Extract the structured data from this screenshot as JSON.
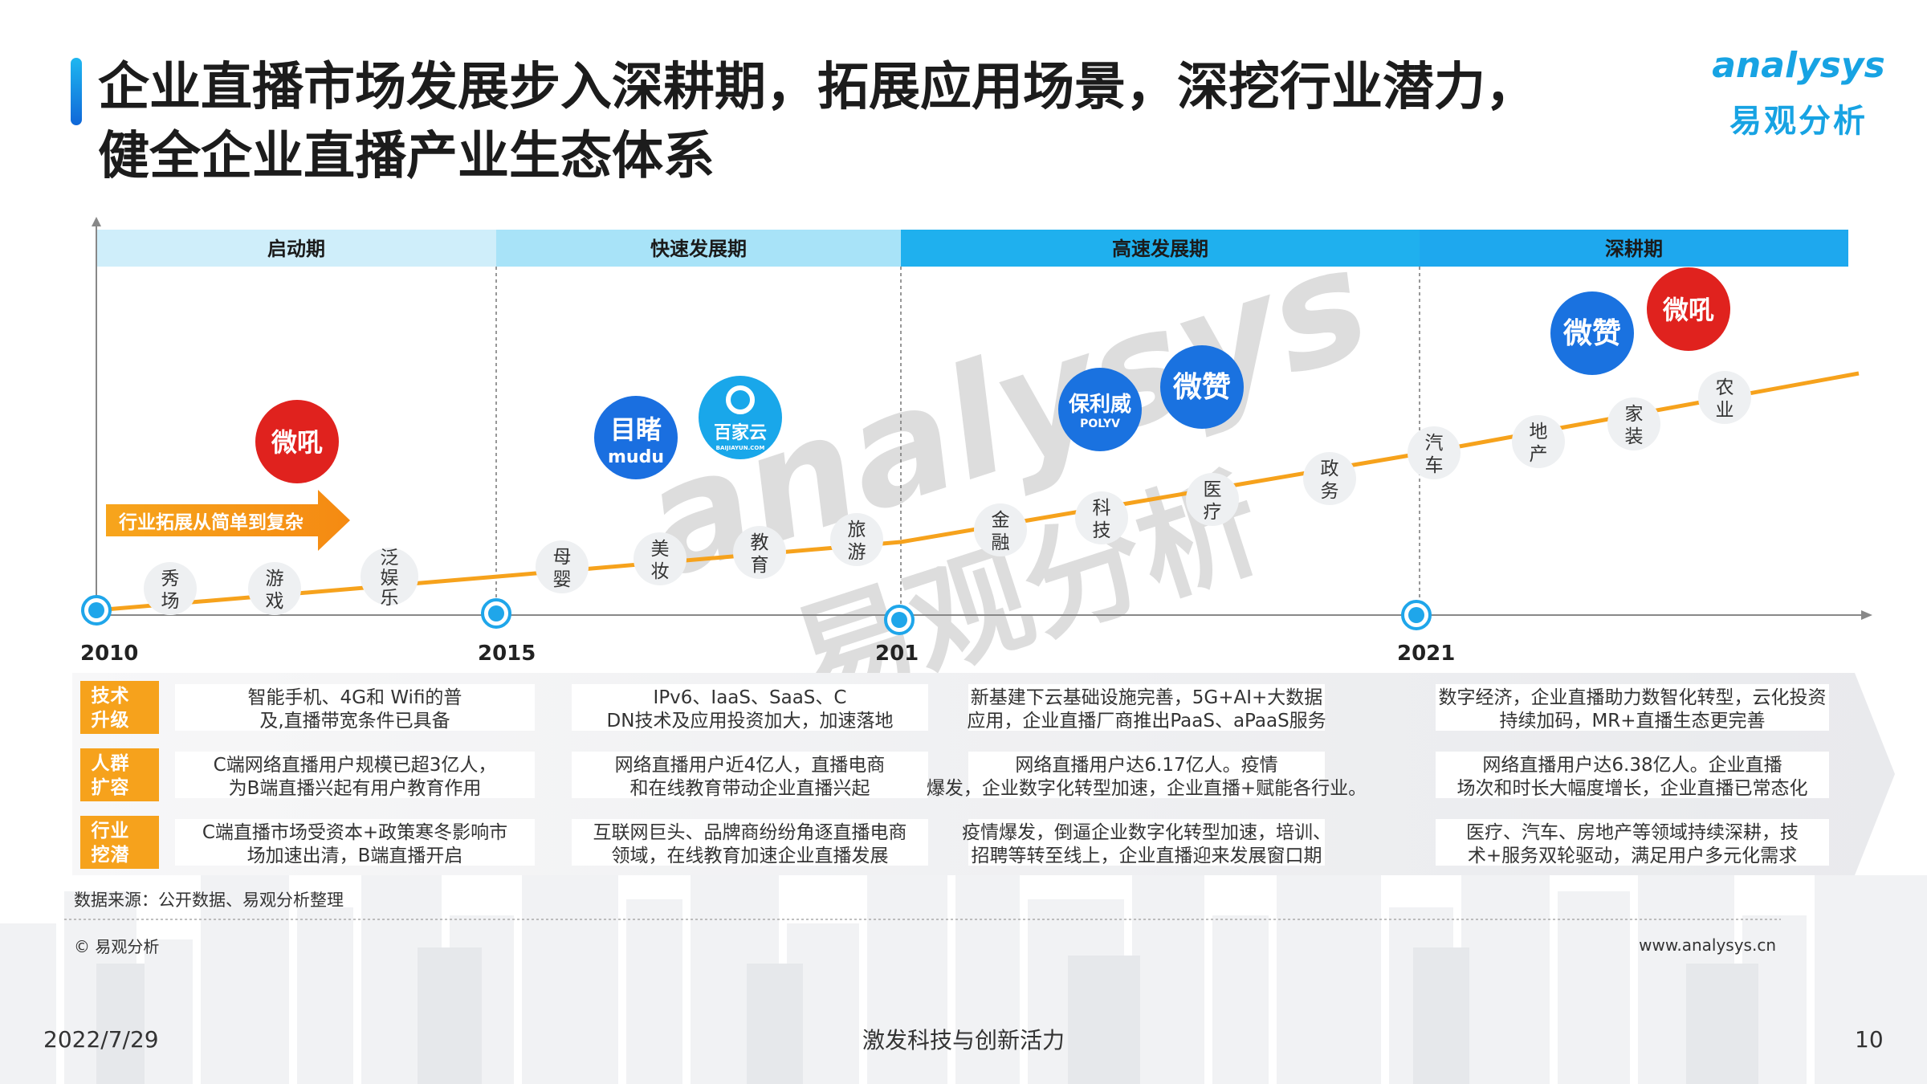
{
  "title": {
    "line1": "企业直播市场发展步入深耕期，拓展应用场景，深挖行业潜力，",
    "line2": "健全企业直播产业生态体系"
  },
  "logo": {
    "en": "analysys",
    "cn": "易观分析"
  },
  "phases": [
    {
      "label": "启动期",
      "color": "#cfeefa"
    },
    {
      "label": "快速发展期",
      "color": "#a8e3f8"
    },
    {
      "label": "高速发展期",
      "color": "#1fb0ee"
    },
    {
      "label": "深耕期",
      "color": "#1ea8ee"
    }
  ],
  "years": [
    "2010",
    "2015",
    "201",
    "2021"
  ],
  "arrow_label": "行业拓展从简单到复杂",
  "industries": [
    "秀场",
    "游戏",
    "泛娱乐",
    "母婴",
    "美妆",
    "教育",
    "旅游",
    "金融",
    "科技",
    "医疗",
    "政务",
    "汽车",
    "地产",
    "家装",
    "农业"
  ],
  "brands": [
    {
      "name": "微吼",
      "color": "#e0221e"
    },
    {
      "name": "目睹",
      "sub": "mudu",
      "color": "#1a6fe0"
    },
    {
      "name": "百家云",
      "sub": "BAIJIAYUN.COM",
      "color": "#19a7ea"
    },
    {
      "name": "保利威",
      "sub": "POLYV",
      "color": "#1a72e0"
    },
    {
      "name": "微赞",
      "color": "#1a72e0"
    },
    {
      "name": "微赞",
      "color": "#1a72e0"
    },
    {
      "name": "微吼",
      "color": "#e0221e"
    }
  ],
  "row_labels": [
    "技术升级",
    "人群扩容",
    "行业挖潜"
  ],
  "cells": [
    [
      "智能手机、4G和 Wifi的普及,直播带宽条件已具备",
      "IPv6、IaaS、SaaS、CDN技术及应用投资加大，加速落地",
      "新基建下云基础设施完善，5G+AI+大数据应用，企业直播厂商推出PaaS、aPaaS服务",
      "数字经济，企业直播助力数智化转型，云化投资持续加码，MR+直播生态更完善"
    ],
    [
      "C端网络直播用户规模已超3亿人，为B端直播兴起有用户教育作用",
      "网络直播用户近4亿人，直播电商和在线教育带动企业直播兴起",
      "网络直播用户达6.17亿人。疫情爆发，企业数字化转型加速，企业直播+赋能各行业。",
      "网络直播用户达6.38亿人。企业直播场次和时长大幅度增长，企业直播已常态化"
    ],
    [
      "C端直播市场受资本+政策寒冬影响市场加速出清，B端直播开启",
      "互联网巨头、品牌商纷纷角逐直播电商领域，在线教育加速企业直播发展",
      "疫情爆发，倒逼企业数字化转型加速，培训、招聘等转至线上，企业直播迎来发展窗口期",
      "医疗、汽车、房地产等领域持续深耕，技术+服务双轮驱动，满足用户多元化需求"
    ]
  ],
  "source": "数据来源：公开数据、易观分析整理",
  "copyright": "© 易观分析",
  "website": "www.analysys.cn",
  "date": "2022/7/29",
  "slogan": "激发科技与创新活力",
  "page_number": "10",
  "watermark": {
    "en": "analysys",
    "cn": "易观分析"
  },
  "colors": {
    "accent": "#1fa6ea",
    "trend_line": "#f6a21c",
    "row_label": "#f6a21c"
  }
}
